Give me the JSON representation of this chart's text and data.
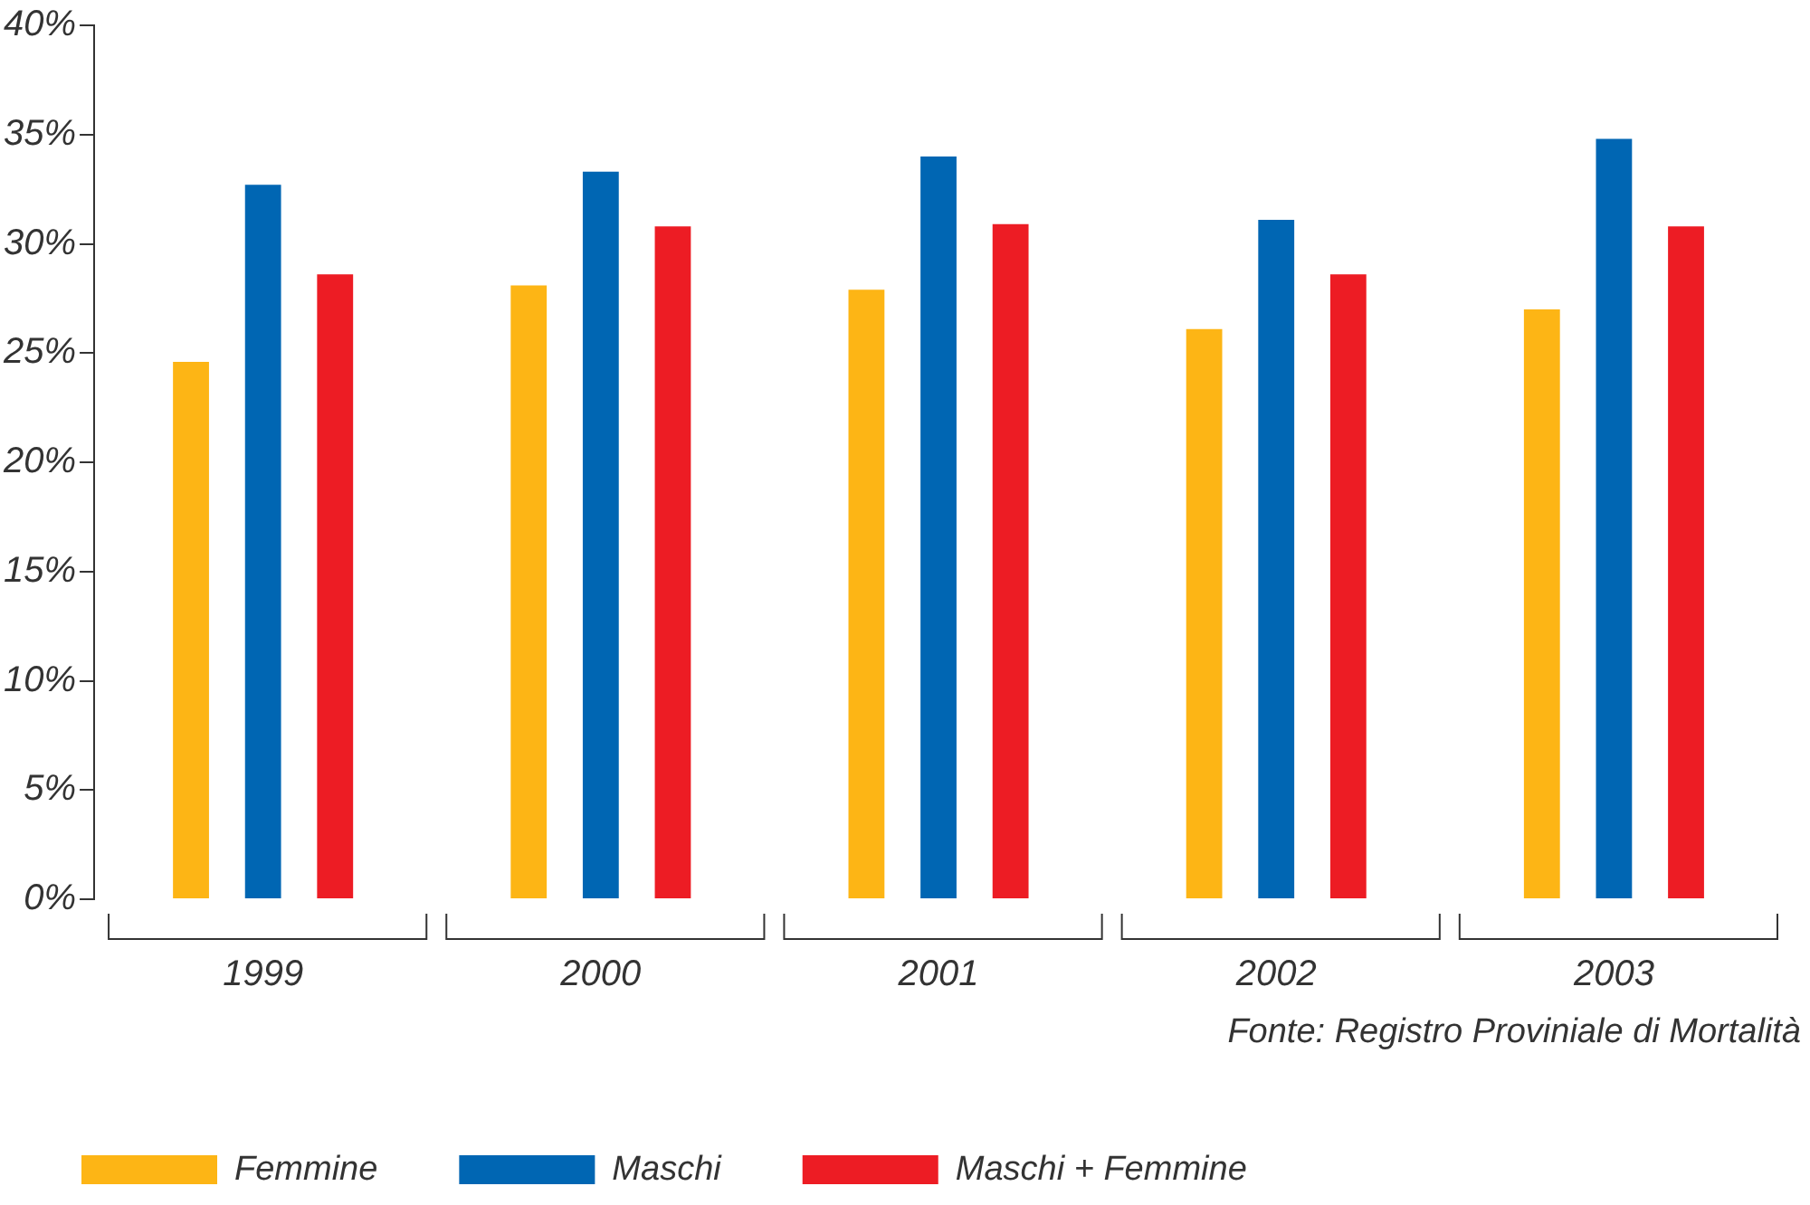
{
  "chart_data": {
    "type": "bar",
    "categories": [
      "1999",
      "2000",
      "2001",
      "2002",
      "2003"
    ],
    "series": [
      {
        "name": "Femmine",
        "color": "#fdb515",
        "values": [
          24.6,
          28.1,
          27.9,
          26.1,
          27.0
        ]
      },
      {
        "name": "Maschi",
        "color": "#0066b3",
        "values": [
          32.7,
          33.3,
          34.0,
          31.1,
          34.8
        ]
      },
      {
        "name": "Maschi + Femmine",
        "color": "#ed1c24",
        "values": [
          28.6,
          30.8,
          30.9,
          28.6,
          30.8
        ]
      }
    ],
    "ylim": [
      0,
      40
    ],
    "yticks": [
      {
        "value": 0,
        "label": "0%"
      },
      {
        "value": 5,
        "label": "5%"
      },
      {
        "value": 10,
        "label": "10%"
      },
      {
        "value": 15,
        "label": "15%"
      },
      {
        "value": 20,
        "label": "20%"
      },
      {
        "value": 25,
        "label": "25%"
      },
      {
        "value": 30,
        "label": "30%"
      },
      {
        "value": 35,
        "label": "35%"
      },
      {
        "value": 40,
        "label": "40%"
      }
    ],
    "grid": false,
    "legend": "bottom",
    "annotations": [
      "Fonte: Registro Proviniale di Mortalità"
    ]
  }
}
